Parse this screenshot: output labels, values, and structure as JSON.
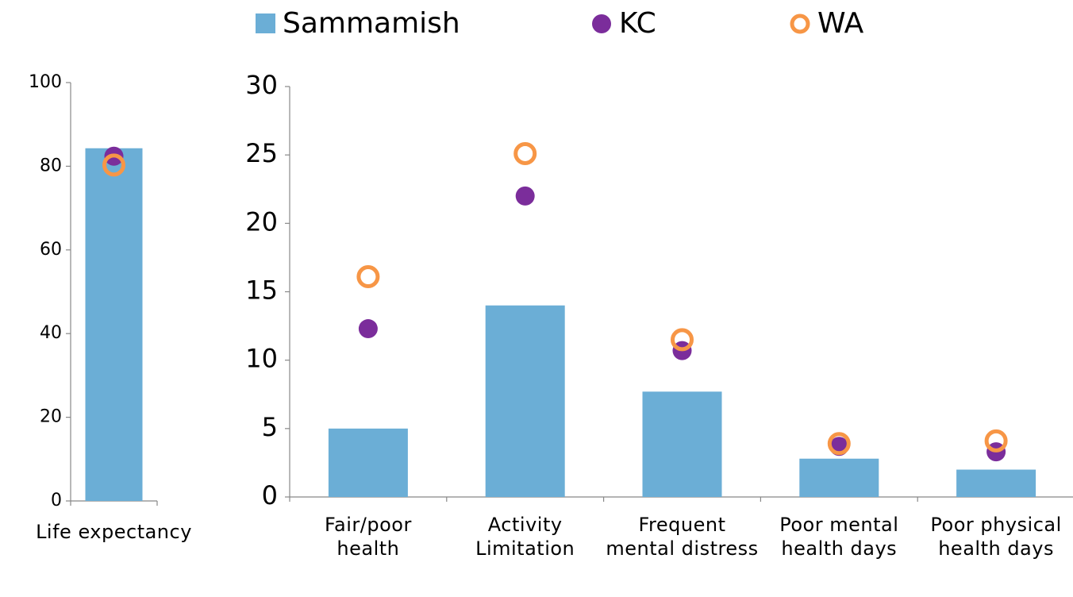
{
  "chart_data": [
    {
      "type": "bar_dot",
      "categories": [
        "Life expectancy"
      ],
      "ylim": [
        0,
        100
      ],
      "yticks": [
        0,
        20,
        40,
        60,
        80,
        100
      ],
      "series": [
        {
          "name": "Sammamish",
          "color": "#6baed6",
          "values": [
            84.3
          ]
        },
        {
          "name": "KC",
          "color": "#7b2d9b",
          "values": [
            82.4
          ]
        },
        {
          "name": "WA",
          "color": "#f79646",
          "values": [
            80.3
          ]
        }
      ]
    },
    {
      "type": "bar_dot",
      "categories": [
        "Fair/poor health",
        "Activity Limitation",
        "Frequent mental distress",
        "Poor mental health days",
        "Poor physical health days"
      ],
      "ylim": [
        0,
        30
      ],
      "yticks": [
        0,
        5,
        10,
        15,
        20,
        25,
        30
      ],
      "series": [
        {
          "color": "#6baed6",
          "values": [
            5.0,
            14.0,
            7.7,
            2.8,
            2.0
          ]
        },
        {
          "color": "#7b2d9b",
          "values": [
            12.3,
            22.0,
            10.7,
            3.7,
            3.3
          ]
        },
        {
          "color": "#f79646",
          "values": [
            16.1,
            25.1,
            11.5,
            3.9,
            4.1
          ]
        }
      ]
    }
  ]
}
